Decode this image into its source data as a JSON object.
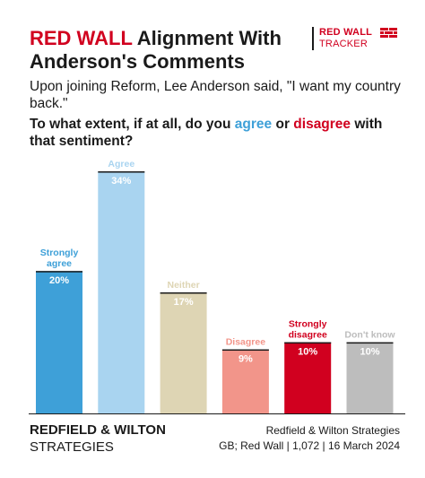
{
  "title": {
    "highlight": "RED WALL",
    "rest": " Alignment With Anderson's Comments"
  },
  "logo": {
    "line1": "RED WALL",
    "line2": "TRACKER",
    "icon": "brick-wall-icon"
  },
  "subtitle": "Upon joining Reform, Lee Anderson said, \"I want my country back.\"",
  "question": {
    "part1": "To what extent, if at all, do you ",
    "agree_word": "agree",
    "middle": " or ",
    "disagree_word": "disagree",
    "part2": " with that sentiment?"
  },
  "chart_data": {
    "type": "bar",
    "title": "",
    "xlabel": "",
    "ylabel": "",
    "ylim": [
      0,
      36
    ],
    "categories": [
      "Strongly agree",
      "Agree",
      "Neither",
      "Disagree",
      "Strongly disagree",
      "Don't know"
    ],
    "category_labels": [
      [
        "Strongly",
        "agree"
      ],
      [
        "Agree"
      ],
      [
        "Neither"
      ],
      [
        "Disagree"
      ],
      [
        "Strongly",
        "disagree"
      ],
      [
        "Don't know"
      ]
    ],
    "values": [
      20,
      34,
      17,
      9,
      10,
      10
    ],
    "value_labels": [
      "20%",
      "34%",
      "17%",
      "9%",
      "10%",
      "10%"
    ],
    "colors": [
      "#3ea0d8",
      "#a9d4f0",
      "#ded5b4",
      "#f2958a",
      "#d1001f",
      "#bdbdbd"
    ],
    "label_colors": [
      "#3ea0d8",
      "#a9d4f0",
      "#ded5b4",
      "#f2958a",
      "#d1001f",
      "#bdbdbd"
    ],
    "grid": false,
    "legend": "none"
  },
  "footer": {
    "brand_line1": "REDFIELD & WILTON",
    "brand_line2": "STRATEGIES",
    "source_line1": "Redfield & Wilton Strategies",
    "source_line2": "GB; Red Wall | 1,072 | 16 March 2024"
  }
}
